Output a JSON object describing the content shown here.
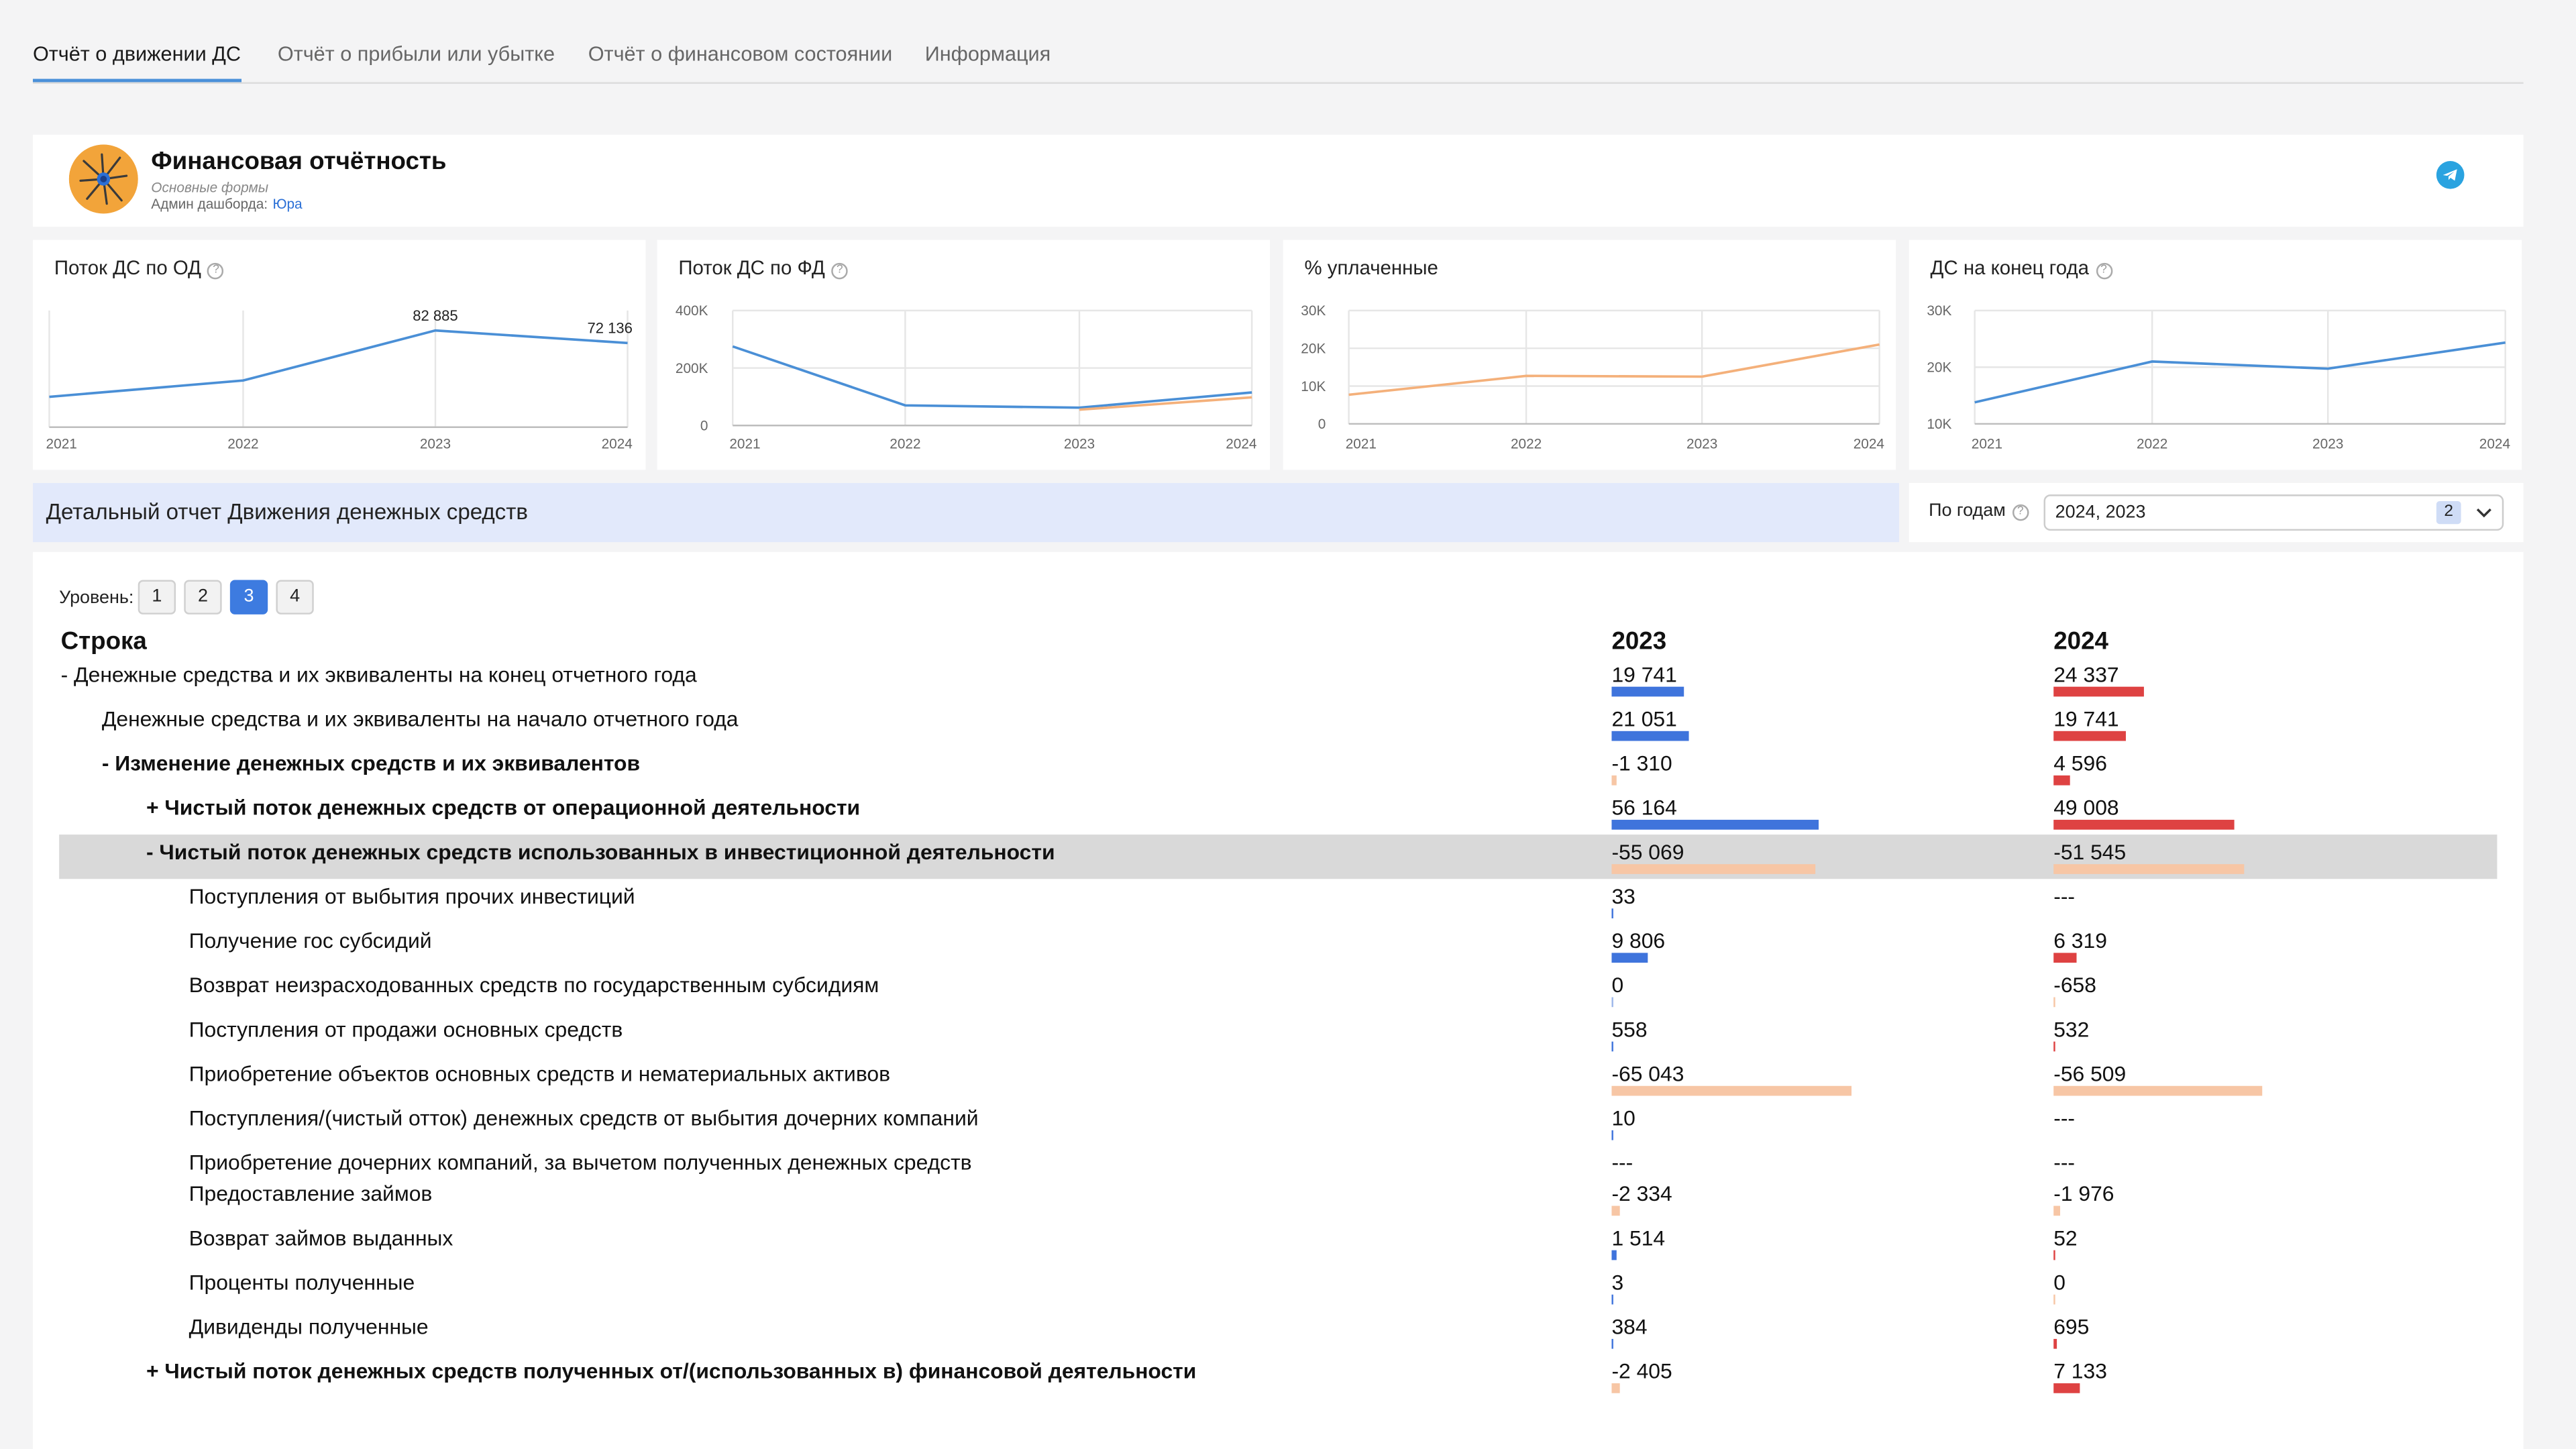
{
  "tabs": [
    {
      "label": "Отчёт о движении ДС",
      "active": true
    },
    {
      "label": "Отчёт о прибыли или убытке",
      "active": false
    },
    {
      "label": "Отчёт о финансовом состоянии",
      "active": false
    },
    {
      "label": "Информация",
      "active": false
    }
  ],
  "header": {
    "title": "Финансовая отчётность",
    "subtitle": "Основные формы",
    "admin_label": "Админ дашборда:",
    "admin_name": "Юра"
  },
  "icons": {
    "logo": "spider-logo-icon",
    "telegram": "telegram-icon",
    "help": "help-circle-icon",
    "chevron": "chevron-down-icon"
  },
  "colors": {
    "blue_line": "#4a8fd6",
    "orange_line": "#f4b07a",
    "bar_2023_pos": "#3f74dc",
    "bar_2024_pos": "#de4242",
    "bar_neg": "#f7c6a5",
    "accent": "#3d7be0"
  },
  "chart_data": [
    {
      "type": "line",
      "title": "Поток ДС по ОД",
      "categories": [
        "2021",
        "2022",
        "2023",
        "2024"
      ],
      "series": [
        {
          "values": [
            26000,
            40000,
            82885,
            72136
          ]
        }
      ],
      "data_labels": [
        "",
        "",
        "82 885",
        "72 136"
      ],
      "ylim": [
        0,
        100000
      ],
      "y_ticks": [],
      "grid": true
    },
    {
      "type": "line",
      "title": "Поток ДС по ФД",
      "categories": [
        "2021",
        "2022",
        "2023",
        "2024"
      ],
      "series": [
        {
          "values": [
            275000,
            70000,
            62000,
            115000
          ]
        },
        {
          "values": [
            null,
            null,
            55000,
            98000
          ]
        }
      ],
      "ylim": [
        0,
        400000
      ],
      "y_ticks": [
        "0",
        "200K",
        "400K"
      ],
      "grid": true
    },
    {
      "type": "line",
      "title": "% уплаченные",
      "categories": [
        "2021",
        "2022",
        "2023",
        "2024"
      ],
      "series": [
        {
          "values": [
            7700,
            12700,
            12500,
            21000
          ]
        }
      ],
      "ylim": [
        0,
        30000
      ],
      "y_ticks": [
        "0",
        "10K",
        "20K",
        "30K"
      ],
      "grid": true
    },
    {
      "type": "line",
      "title": "ДС на конец года",
      "categories": [
        "2021",
        "2022",
        "2023",
        "2024"
      ],
      "series": [
        {
          "values": [
            13800,
            21000,
            19741,
            24337
          ]
        }
      ],
      "ylim": [
        10000,
        30000
      ],
      "y_ticks": [
        "10K",
        "20K",
        "30K"
      ],
      "grid": true
    }
  ],
  "detail": {
    "title": "Детальный отчет Движения денежных средств",
    "filter_label": "По годам",
    "filter_value": "2024, 2023",
    "filter_count": "2"
  },
  "table": {
    "level_label": "Уровень:",
    "levels": [
      "1",
      "2",
      "3",
      "4"
    ],
    "active_level": 2,
    "headers": {
      "row": "Строка",
      "col1": "2023",
      "col2": "2024"
    },
    "rows": [
      {
        "label": "- Денежные средства и их эквиваленты на конец отчетного года",
        "indent": 0,
        "bold": false,
        "v2023": "19 741",
        "n2023": 19741,
        "v2024": "24 337",
        "n2024": 24337,
        "highlight": false
      },
      {
        "label": "Денежные средства и их эквиваленты на начало отчетного года",
        "indent": 1,
        "bold": false,
        "v2023": "21 051",
        "n2023": 21051,
        "v2024": "19 741",
        "n2024": 19741,
        "highlight": false
      },
      {
        "label": "- Изменение денежных средств и их эквивалентов",
        "indent": 1,
        "bold": true,
        "v2023": "-1 310",
        "n2023": -1310,
        "v2024": "4 596",
        "n2024": 4596,
        "highlight": false
      },
      {
        "label": "+ Чистый поток денежных средств от операционной деятельности",
        "indent": 2,
        "bold": true,
        "v2023": "56 164",
        "n2023": 56164,
        "v2024": "49 008",
        "n2024": 49008,
        "highlight": false
      },
      {
        "label": "- Чистый поток денежных средств использованных в инвестиционной деятельности",
        "indent": 2,
        "bold": true,
        "v2023": "-55 069",
        "n2023": -55069,
        "v2024": "-51 545",
        "n2024": -51545,
        "highlight": true
      },
      {
        "label": "Поступления от выбытия прочих инвестиций",
        "indent": 3,
        "bold": false,
        "v2023": "33",
        "n2023": 33,
        "v2024": "---",
        "n2024": null,
        "highlight": false
      },
      {
        "label": "Получение гос субсидий",
        "indent": 3,
        "bold": false,
        "v2023": "9 806",
        "n2023": 9806,
        "v2024": "6 319",
        "n2024": 6319,
        "highlight": false
      },
      {
        "label": "Возврат неизрасходованных средств по государственным субсидиям",
        "indent": 3,
        "bold": false,
        "v2023": "0",
        "n2023": 0,
        "v2024": "-658",
        "n2024": -658,
        "highlight": false
      },
      {
        "label": "Поступления от продажи основных средств",
        "indent": 3,
        "bold": false,
        "v2023": "558",
        "n2023": 558,
        "v2024": "532",
        "n2024": 532,
        "highlight": false
      },
      {
        "label": "Приобретение объектов основных средств и нематериальных активов",
        "indent": 3,
        "bold": false,
        "v2023": "-65 043",
        "n2023": -65043,
        "v2024": "-56 509",
        "n2024": -56509,
        "highlight": false
      },
      {
        "label": "Поступления/(чистый отток) денежных средств от выбытия дочерних компаний",
        "indent": 3,
        "bold": false,
        "v2023": "10",
        "n2023": 10,
        "v2024": "---",
        "n2024": null,
        "highlight": false
      },
      {
        "label": "Приобретение дочерних компаний, за вычетом полученных денежных средств",
        "indent": 3,
        "bold": false,
        "v2023": "---",
        "n2023": null,
        "v2024": "---",
        "n2024": null,
        "highlight": false
      },
      {
        "label": "Предоставление займов",
        "indent": 3,
        "bold": false,
        "v2023": "-2 334",
        "n2023": -2334,
        "v2024": "-1 976",
        "n2024": -1976,
        "highlight": false
      },
      {
        "label": "Возврат займов выданных",
        "indent": 3,
        "bold": false,
        "v2023": "1 514",
        "n2023": 1514,
        "v2024": "52",
        "n2024": 52,
        "highlight": false
      },
      {
        "label": "Проценты полученные",
        "indent": 3,
        "bold": false,
        "v2023": "3",
        "n2023": 3,
        "v2024": "0",
        "n2024": 0,
        "highlight": false
      },
      {
        "label": "Дивиденды полученные",
        "indent": 3,
        "bold": false,
        "v2023": "384",
        "n2023": 384,
        "v2024": "695",
        "n2024": 695,
        "highlight": false
      },
      {
        "label": "+ Чистый поток денежных средств полученных от/(использованных в) финансовой деятельности",
        "indent": 2,
        "bold": true,
        "v2023": "-2 405",
        "n2023": -2405,
        "v2024": "7 133",
        "n2024": 7133,
        "highlight": false
      }
    ]
  }
}
